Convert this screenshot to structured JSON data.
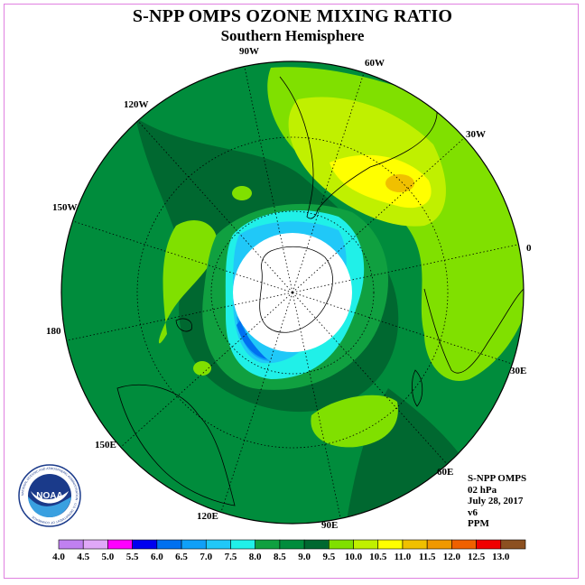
{
  "title": "S-NPP OMPS OZONE MIXING RATIO",
  "subtitle": "Southern Hemisphere",
  "longitude_labels": [
    "90W",
    "60W",
    "30W",
    "0",
    "30E",
    "60E",
    "90E",
    "120E",
    "150E",
    "180",
    "150W",
    "120W"
  ],
  "info": {
    "instrument": "S-NPP OMPS",
    "level": "02 hPa",
    "date": "July 28, 2017",
    "version": "v6",
    "units": "PPM"
  },
  "logo": {
    "text": "NOAA",
    "ring_text": "NATIONAL OCEANIC AND ATMOSPHERIC ADMINISTRATION · U.S. DEPARTMENT OF COMMERCE"
  },
  "colorbar": {
    "ticks": [
      "4.0",
      "4.5",
      "5.0",
      "5.5",
      "6.0",
      "6.5",
      "7.0",
      "7.5",
      "8.0",
      "8.5",
      "9.0",
      "9.5",
      "10.0",
      "10.5",
      "11.0",
      "11.5",
      "12.0",
      "12.5",
      "13.0"
    ],
    "colors": [
      "#c080f0",
      "#e0a8f8",
      "#ff00ff",
      "#0000f0",
      "#0070f0",
      "#10a0f8",
      "#20c8f8",
      "#20f0e8",
      "#10a040",
      "#008c3c",
      "#006830",
      "#80e000",
      "#c0f000",
      "#ffff00",
      "#f0c000",
      "#f09800",
      "#f06000",
      "#f00000",
      "#8c5020"
    ]
  },
  "colors": {
    "frame": "#e080e0",
    "map_base": "#008c3c",
    "hole": "#ffffff"
  }
}
